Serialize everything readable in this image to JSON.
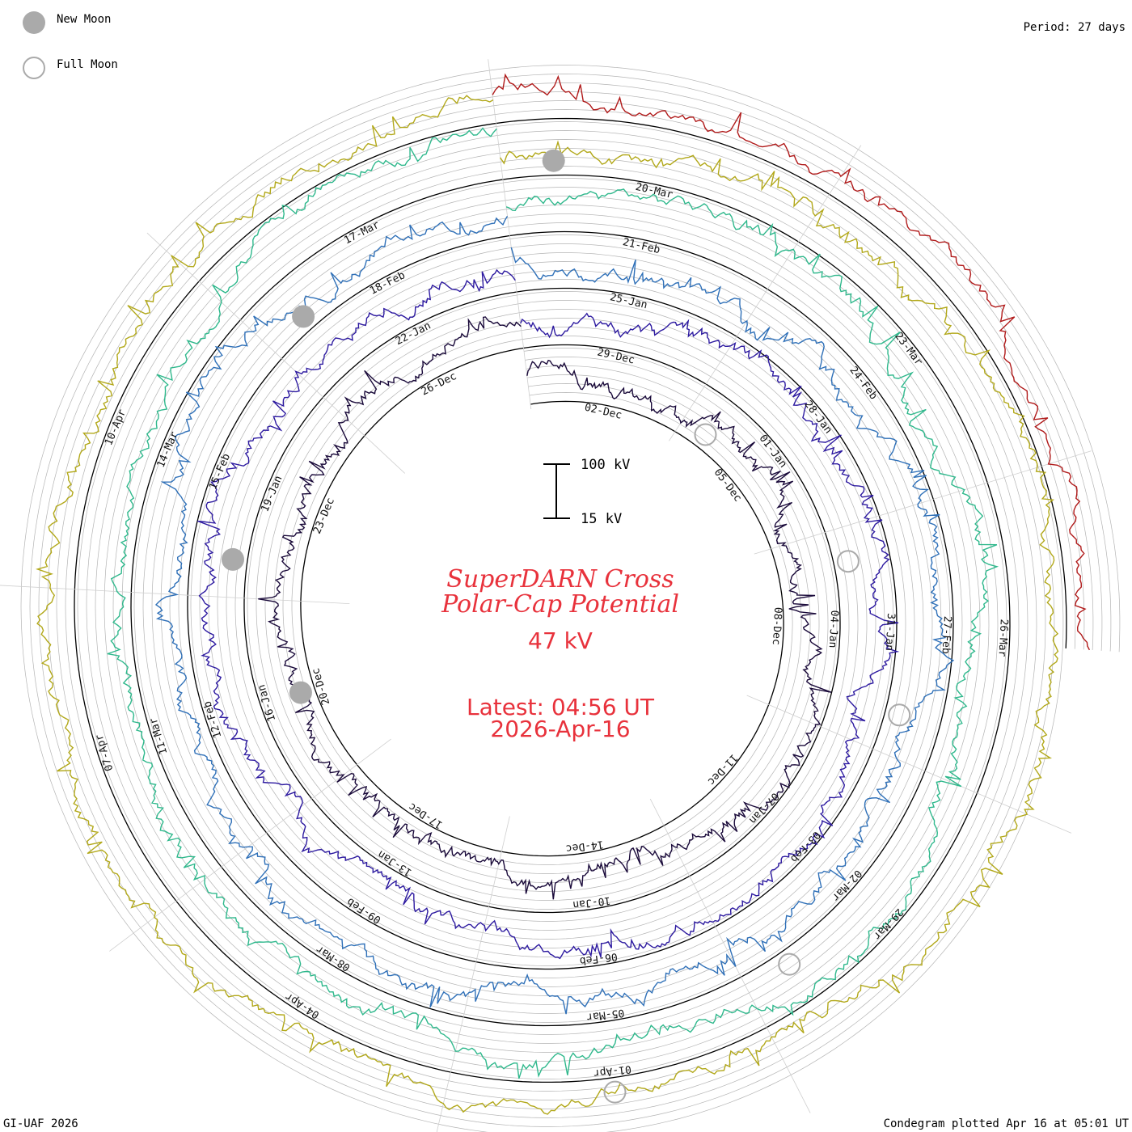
{
  "legend": {
    "new_moon_label": "New Moon",
    "full_moon_label": "Full Moon",
    "period_label": "Period: 27 days"
  },
  "footer": {
    "credit": "GI-UAF 2026",
    "plotted": "Condegram plotted Apr 16 at 05:01 UT"
  },
  "center": {
    "title_line1": "SuperDARN Cross",
    "title_line2": "Polar-Cap Potential",
    "current_value": "47 kV",
    "latest_label": "Latest: 04:56 UT",
    "latest_date": "2026-Apr-16",
    "scale_top": "100 kV",
    "scale_bottom": "15 kV"
  },
  "colors": {
    "title_red": "#e8323c",
    "grid": "#b4b4b4"
  },
  "chart_data": {
    "type": "line",
    "description_kind": "spiral condegram",
    "period_days": 27,
    "units": "kV",
    "scale_range": [
      15,
      100
    ],
    "rotations": [
      {
        "name": "rotation-1",
        "color": "#1a0a3a",
        "dates": [
          "02-Dec",
          "05-Dec",
          "08-Dec",
          "11-Dec",
          "14-Dec",
          "17-Dec",
          "20-Dec",
          "23-Dec",
          "26-Dec"
        ]
      },
      {
        "name": "rotation-2",
        "color": "#2d1aa0",
        "dates": [
          "29-Dec",
          "01-Jan",
          "04-Jan",
          "07-Jan",
          "10-Jan",
          "13-Jan",
          "16-Jan",
          "19-Jan",
          "22-Jan"
        ]
      },
      {
        "name": "rotation-3",
        "color": "#2f70b8",
        "dates": [
          "25-Jan",
          "28-Jan",
          "31-Jan",
          "03-Feb",
          "06-Feb",
          "09-Feb",
          "12-Feb",
          "15-Feb",
          "18-Feb"
        ]
      },
      {
        "name": "rotation-4",
        "color": "#2fb88c",
        "dates": [
          "21-Feb",
          "24-Feb",
          "27-Feb",
          "02-Mar",
          "05-Mar",
          "08-Mar",
          "11-Mar",
          "14-Mar",
          "17-Mar"
        ]
      },
      {
        "name": "rotation-5",
        "color": "#b2a81a",
        "dates": [
          "20-Mar",
          "23-Mar",
          "26-Mar",
          "29-Mar",
          "01-Apr",
          "04-Apr",
          "07-Apr",
          "10-Apr"
        ]
      },
      {
        "name": "rotation-6",
        "color": "#b01a1a",
        "dates": []
      }
    ],
    "new_moons": [
      "2025-Dec-20",
      "2026-Jan-18",
      "2026-Feb-17",
      "2026-Mar-19"
    ],
    "full_moons": [
      "2025-Dec-04",
      "2026-Jan-03",
      "2026-Feb-01",
      "2026-Mar-03",
      "2026-Apr-01"
    ],
    "latest_value": 47
  }
}
